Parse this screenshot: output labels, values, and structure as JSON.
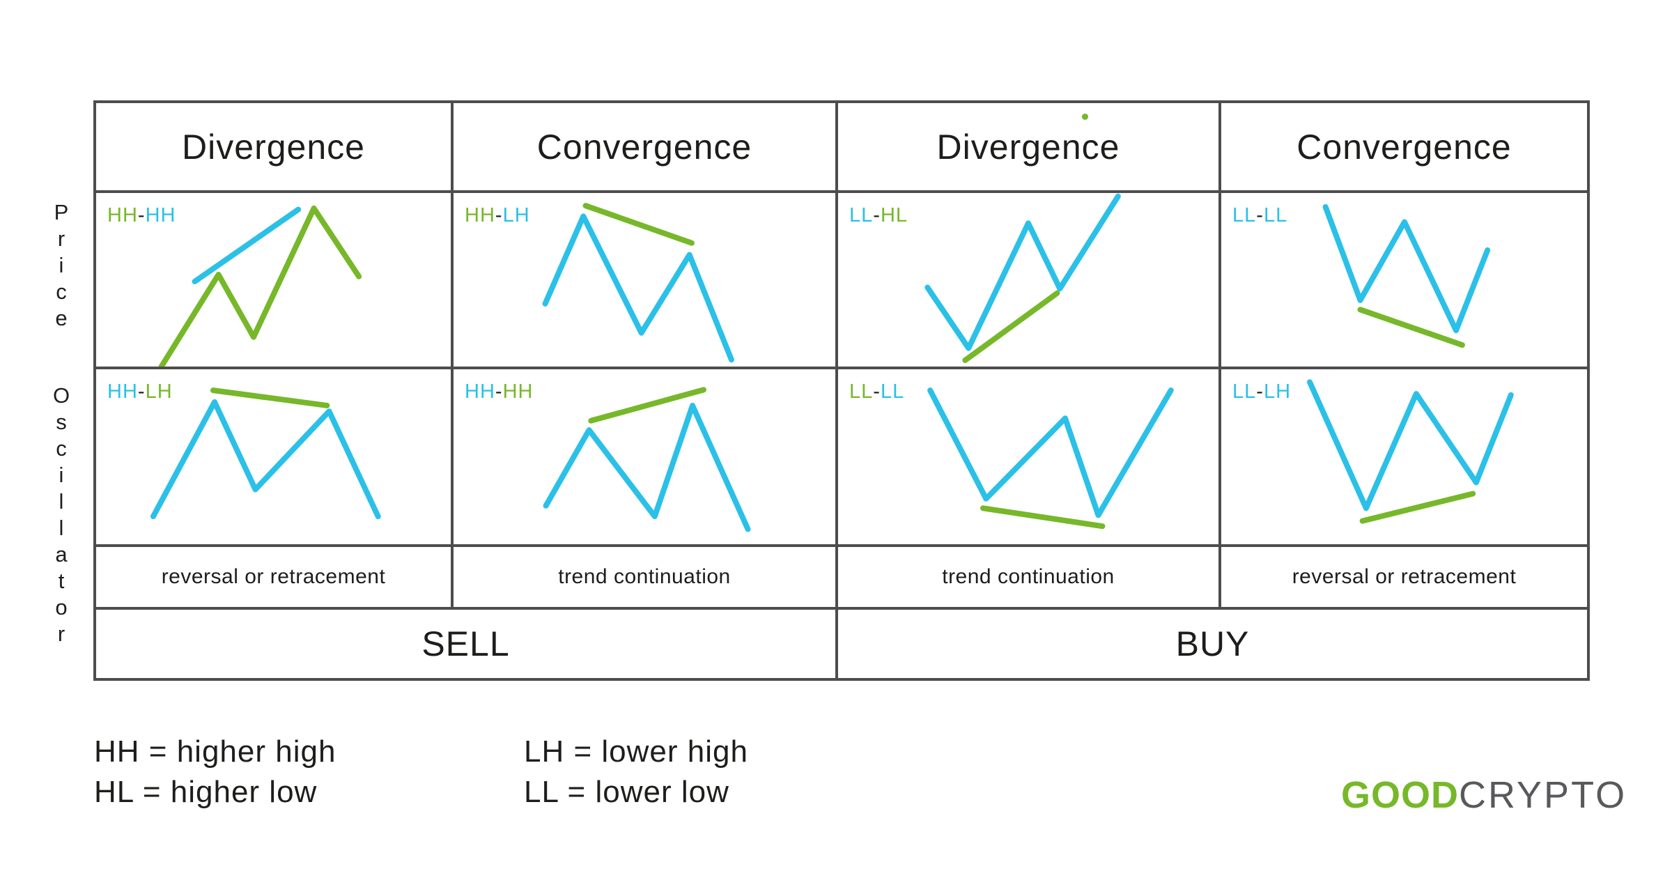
{
  "colors": {
    "cyan": "#2BC0E8",
    "green": "#76B82A",
    "border": "#4D4D4D",
    "text": "#1D1D1B",
    "logo_gray": "#58595B"
  },
  "headers": [
    {
      "label": "Divergence"
    },
    {
      "label": "Convergence"
    },
    {
      "label": "Divergence"
    },
    {
      "label": "Convergence"
    }
  ],
  "side_labels": {
    "price": "Price",
    "oscillator": "Oscillator"
  },
  "cells": [
    {
      "id": "price-divergence-sell",
      "label": [
        {
          "t": "HH",
          "c": "#76B82A"
        },
        {
          "t": "-",
          "c": "#1D1D1B"
        },
        {
          "t": "HH",
          "c": "#2BC0E8"
        }
      ],
      "lines": [
        {
          "name": "price-zigzag",
          "color": "#76B82A",
          "points": [
            [
              18.4,
              100
            ],
            [
              34.5,
              47
            ],
            [
              44.4,
              83
            ],
            [
              61.4,
              8.8
            ],
            [
              74.1,
              48.1
            ]
          ]
        },
        {
          "name": "trendline",
          "color": "#2BC0E8",
          "points": [
            [
              27.8,
              51
            ],
            [
              57,
              9.5
            ]
          ]
        }
      ]
    },
    {
      "id": "price-convergence-sell",
      "label": [
        {
          "t": "HH",
          "c": "#76B82A"
        },
        {
          "t": "-",
          "c": "#1D1D1B"
        },
        {
          "t": "LH",
          "c": "#2BC0E8"
        }
      ],
      "lines": [
        {
          "name": "price-zigzag",
          "color": "#2BC0E8",
          "points": [
            [
              24,
              63.8
            ],
            [
              34,
              13.4
            ],
            [
              49.2,
              80.6
            ],
            [
              61.8,
              35.6
            ],
            [
              72.8,
              96.1
            ]
          ]
        },
        {
          "name": "trendline",
          "color": "#76B82A",
          "points": [
            [
              34.6,
              7.3
            ],
            [
              62.4,
              28.8
            ]
          ]
        }
      ]
    },
    {
      "id": "price-divergence-buy",
      "label": [
        {
          "t": "LL",
          "c": "#2BC0E8"
        },
        {
          "t": "-",
          "c": "#1D1D1B"
        },
        {
          "t": "HL",
          "c": "#76B82A"
        }
      ],
      "lines": [
        {
          "name": "price-zigzag",
          "color": "#2BC0E8",
          "points": [
            [
              23.5,
              54.4
            ],
            [
              34.3,
              89.4
            ],
            [
              50,
              17.4
            ],
            [
              58.3,
              55.1
            ],
            [
              73.6,
              1.9
            ]
          ]
        },
        {
          "name": "trendline",
          "color": "#76B82A",
          "points": [
            [
              33.4,
              96.4
            ],
            [
              57.6,
              57.7
            ]
          ]
        }
      ]
    },
    {
      "id": "price-convergence-buy",
      "label": [
        {
          "t": "LL",
          "c": "#2BC0E8"
        },
        {
          "t": "-",
          "c": "#1D1D1B"
        },
        {
          "t": "LL",
          "c": "#2BC0E8"
        }
      ],
      "lines": [
        {
          "name": "price-zigzag",
          "color": "#2BC0E8",
          "points": [
            [
              28.5,
              8
            ],
            [
              38,
              61.8
            ],
            [
              50.1,
              16.7
            ],
            [
              64.2,
              79.2
            ],
            [
              72.8,
              32.9
            ]
          ]
        },
        {
          "name": "trendline",
          "color": "#76B82A",
          "points": [
            [
              38,
              67.2
            ],
            [
              65.9,
              87.6
            ]
          ]
        }
      ]
    },
    {
      "id": "oscillator-divergence-sell",
      "label": [
        {
          "t": "HH",
          "c": "#2BC0E8"
        },
        {
          "t": "-",
          "c": "#1D1D1B"
        },
        {
          "t": "LH",
          "c": "#76B82A"
        }
      ],
      "lines": [
        {
          "name": "oscillator-zigzag",
          "color": "#2BC0E8",
          "points": [
            [
              16.1,
              84.1
            ],
            [
              33.4,
              18.7
            ],
            [
              44.9,
              68.7
            ],
            [
              65.7,
              24
            ],
            [
              79.5,
              84.1
            ]
          ]
        },
        {
          "name": "trendline",
          "color": "#76B82A",
          "points": [
            [
              33,
              12
            ],
            [
              65.1,
              20.7
            ]
          ]
        }
      ]
    },
    {
      "id": "oscillator-convergence-sell",
      "label": [
        {
          "t": "HH",
          "c": "#2BC0E8"
        },
        {
          "t": "-",
          "c": "#1D1D1B"
        },
        {
          "t": "HH",
          "c": "#76B82A"
        }
      ],
      "lines": [
        {
          "name": "oscillator-zigzag",
          "color": "#2BC0E8",
          "points": [
            [
              24.2,
              78
            ],
            [
              35.5,
              34.7
            ],
            [
              52.7,
              84.1
            ],
            [
              62.6,
              20.7
            ],
            [
              77.1,
              91.4
            ]
          ]
        },
        {
          "name": "trendline",
          "color": "#76B82A",
          "points": [
            [
              36,
              29.4
            ],
            [
              65.5,
              11.7
            ]
          ]
        }
      ]
    },
    {
      "id": "oscillator-divergence-buy",
      "label": [
        {
          "t": "LL",
          "c": "#76B82A"
        },
        {
          "t": "-",
          "c": "#1D1D1B"
        },
        {
          "t": "LL",
          "c": "#2BC0E8"
        }
      ],
      "lines": [
        {
          "name": "oscillator-zigzag",
          "color": "#2BC0E8",
          "points": [
            [
              24.2,
              12
            ],
            [
              38.9,
              74
            ],
            [
              59.7,
              28
            ],
            [
              68.4,
              83.4
            ],
            [
              87.5,
              12
            ]
          ]
        },
        {
          "name": "trendline",
          "color": "#76B82A",
          "points": [
            [
              38.1,
              79.4
            ],
            [
              69.5,
              89.7
            ]
          ]
        }
      ]
    },
    {
      "id": "oscillator-convergence-buy",
      "label": [
        {
          "t": "LL",
          "c": "#2BC0E8"
        },
        {
          "t": "-",
          "c": "#1D1D1B"
        },
        {
          "t": "LH",
          "c": "#2BC0E8"
        }
      ],
      "lines": [
        {
          "name": "oscillator-zigzag",
          "color": "#2BC0E8",
          "points": [
            [
              24.2,
              7.3
            ],
            [
              39.6,
              79.4
            ],
            [
              53.3,
              14
            ],
            [
              69.7,
              64.7
            ],
            [
              79.2,
              14.7
            ]
          ]
        },
        {
          "name": "trendline",
          "color": "#76B82A",
          "points": [
            [
              38.6,
              86.7
            ],
            [
              68.8,
              71.1
            ]
          ]
        }
      ]
    }
  ],
  "outcomes": [
    "reversal or retracement",
    "trend continuation",
    "trend continuation",
    "reversal or retracement"
  ],
  "actions": [
    {
      "label": "SELL"
    },
    {
      "label": "BUY"
    }
  ],
  "legend": {
    "col1": [
      "HH = higher high",
      "HL = higher low"
    ],
    "col2": [
      "LH = lower high",
      "LL = lower low"
    ]
  },
  "logo": {
    "good": "GOOD",
    "crypto": "CRYPTO"
  }
}
